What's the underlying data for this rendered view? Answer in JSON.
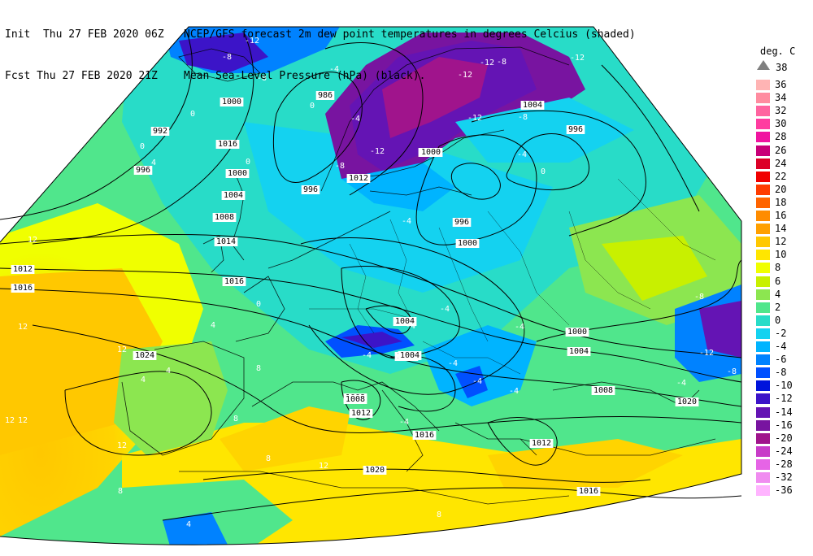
{
  "header": {
    "line1_left": "Init  Thu 27 FEB 2020 06Z",
    "line1_right": "NCEP/GFS forecast 2m dew point temperatures in degrees Celcius (shaded)",
    "line2_left": "Fcst Thu 27 FEB 2020 21Z",
    "line2_right": "Mean Sea-Level Pressure (hPa) (black)."
  },
  "legend": {
    "title": "deg. C",
    "top_label": "38",
    "entries": [
      {
        "label": "36",
        "color": "#ffb4b4"
      },
      {
        "label": "34",
        "color": "#ff8ca0"
      },
      {
        "label": "32",
        "color": "#ff64a0"
      },
      {
        "label": "30",
        "color": "#ff3ca0"
      },
      {
        "label": "28",
        "color": "#f014a0"
      },
      {
        "label": "26",
        "color": "#c80078"
      },
      {
        "label": "24",
        "color": "#dc0028"
      },
      {
        "label": "22",
        "color": "#f00000"
      },
      {
        "label": "20",
        "color": "#ff3c00"
      },
      {
        "label": "18",
        "color": "#ff6400"
      },
      {
        "label": "16",
        "color": "#ff8c00"
      },
      {
        "label": "14",
        "color": "#ffa000"
      },
      {
        "label": "12",
        "color": "#ffc800"
      },
      {
        "label": "10",
        "color": "#ffe600"
      },
      {
        "label": "8",
        "color": "#f0ff00"
      },
      {
        "label": "6",
        "color": "#c8f000"
      },
      {
        "label": "4",
        "color": "#8ce650"
      },
      {
        "label": "2",
        "color": "#50e68c"
      },
      {
        "label": "0",
        "color": "#28dcc8"
      },
      {
        "label": "-2",
        "color": "#14d2f0"
      },
      {
        "label": "-4",
        "color": "#00b4ff"
      },
      {
        "label": "-6",
        "color": "#0082ff"
      },
      {
        "label": "-8",
        "color": "#0050ff"
      },
      {
        "label": "-10",
        "color": "#0014dc"
      },
      {
        "label": "-12",
        "color": "#3c14c8"
      },
      {
        "label": "-14",
        "color": "#6414b4"
      },
      {
        "label": "-16",
        "color": "#7814a0"
      },
      {
        "label": "-20",
        "color": "#a0148c"
      },
      {
        "label": "-24",
        "color": "#c83cc8"
      },
      {
        "label": "-28",
        "color": "#e664e6"
      },
      {
        "label": "-32",
        "color": "#f08cf0"
      },
      {
        "label": "-36",
        "color": "#ffb4ff"
      }
    ]
  },
  "isobar_labels": [
    {
      "text": "1000"
    },
    {
      "text": "986"
    },
    {
      "text": "992"
    },
    {
      "text": "996"
    },
    {
      "text": "1000"
    },
    {
      "text": "1004"
    },
    {
      "text": "1008"
    },
    {
      "text": "996"
    },
    {
      "text": "1004"
    },
    {
      "text": "1000"
    },
    {
      "text": "1012"
    },
    {
      "text": "1016"
    },
    {
      "text": "1014"
    },
    {
      "text": "1016"
    },
    {
      "text": "1012"
    },
    {
      "text": "1016"
    },
    {
      "text": "1024"
    },
    {
      "text": "996"
    },
    {
      "text": "1000"
    },
    {
      "text": "996"
    },
    {
      "text": "1000"
    },
    {
      "text": "1004"
    },
    {
      "text": "1008"
    },
    {
      "text": "1000"
    },
    {
      "text": "1004"
    },
    {
      "text": "1008"
    },
    {
      "text": "1012"
    },
    {
      "text": "1016"
    },
    {
      "text": "1020"
    },
    {
      "text": "1016"
    },
    {
      "text": "1012"
    },
    {
      "text": "1020"
    },
    {
      "text": "1004"
    },
    {
      "text": "1004"
    },
    {
      "text": "1008"
    }
  ],
  "dew_labels": [
    {
      "text": "-12"
    },
    {
      "text": "-8"
    },
    {
      "text": "-8"
    },
    {
      "text": "-4"
    },
    {
      "text": "0"
    },
    {
      "text": "0"
    },
    {
      "text": "0"
    },
    {
      "text": "4"
    },
    {
      "text": "0"
    },
    {
      "text": "-4"
    },
    {
      "text": "-4"
    },
    {
      "text": "-12"
    },
    {
      "text": "-12"
    },
    {
      "text": "-12"
    },
    {
      "text": "-8"
    },
    {
      "text": "-12"
    },
    {
      "text": "-8"
    },
    {
      "text": "-12"
    },
    {
      "text": "-8"
    },
    {
      "text": "-4"
    },
    {
      "text": "-4"
    },
    {
      "text": "0"
    },
    {
      "text": "-4"
    },
    {
      "text": "12"
    },
    {
      "text": "12"
    },
    {
      "text": "12"
    },
    {
      "text": "12"
    },
    {
      "text": "12"
    },
    {
      "text": "12"
    },
    {
      "text": "4"
    },
    {
      "text": "4"
    },
    {
      "text": "0"
    },
    {
      "text": "-4"
    },
    {
      "text": "-4"
    },
    {
      "text": "-4"
    },
    {
      "text": "-4"
    },
    {
      "text": "-4"
    },
    {
      "text": "-4"
    },
    {
      "text": "4"
    },
    {
      "text": "8"
    },
    {
      "text": "8"
    },
    {
      "text": "8"
    },
    {
      "text": "12"
    },
    {
      "text": "8"
    },
    {
      "text": "8"
    },
    {
      "text": "4"
    },
    {
      "text": "-8"
    },
    {
      "text": "-12"
    },
    {
      "text": "-4"
    },
    {
      "text": "-8"
    }
  ]
}
